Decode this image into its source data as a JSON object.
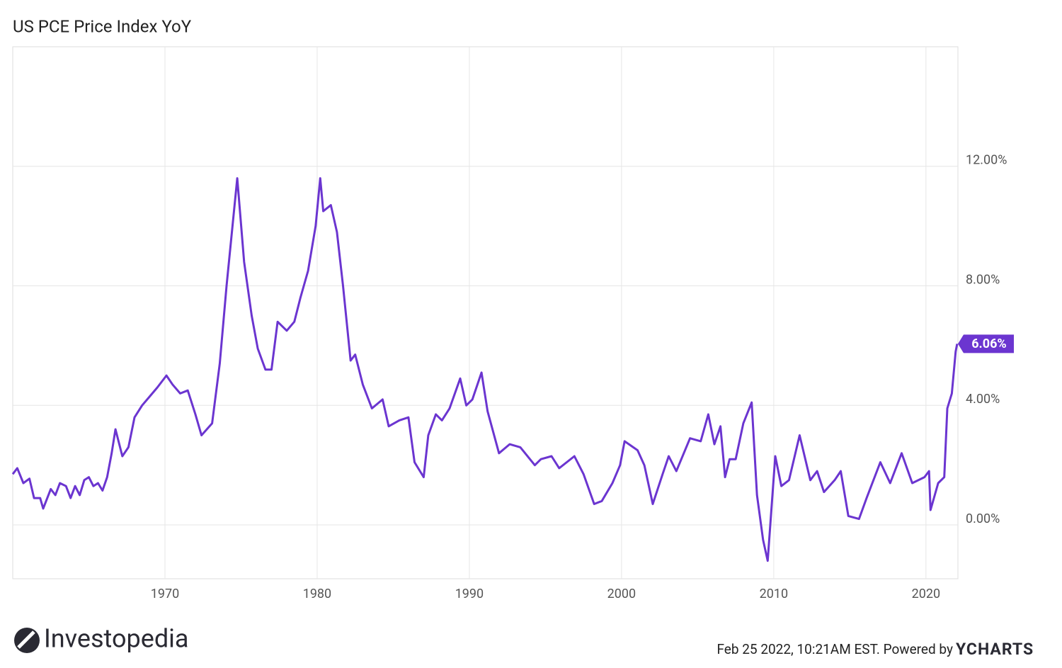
{
  "chart_data": {
    "type": "line",
    "title": "US PCE Price Index YoY",
    "color": "#6b35d0",
    "x": [
      1960.0,
      1960.3,
      1960.7,
      1961.1,
      1961.4,
      1961.8,
      1962.0,
      1962.5,
      1962.8,
      1963.1,
      1963.5,
      1963.8,
      1964.1,
      1964.4,
      1964.7,
      1965.0,
      1965.3,
      1965.6,
      1965.9,
      1966.2,
      1966.5,
      1966.75,
      1967.2,
      1967.6,
      1968.0,
      1968.5,
      1969.0,
      1969.5,
      1970.1,
      1970.5,
      1971.0,
      1971.5,
      1972.0,
      1972.4,
      1973.1,
      1973.6,
      1974.05,
      1974.75,
      1975.2,
      1975.7,
      1976.1,
      1976.6,
      1977.0,
      1977.4,
      1978.0,
      1978.5,
      1978.9,
      1979.4,
      1979.9,
      1980.2,
      1980.4,
      1980.9,
      1981.3,
      1981.7,
      1982.2,
      1982.5,
      1983.0,
      1983.6,
      1984.3,
      1984.7,
      1985.4,
      1986.0,
      1986.4,
      1987.0,
      1987.3,
      1987.8,
      1988.2,
      1988.7,
      1989.4,
      1989.8,
      1990.2,
      1990.8,
      1991.2,
      1991.95,
      1992.65,
      1993.35,
      1994.3,
      1994.7,
      1995.4,
      1995.9,
      1996.9,
      1997.5,
      1998.2,
      1998.7,
      1999.4,
      1999.9,
      2000.2,
      2001.05,
      2001.5,
      2002.05,
      2002.7,
      2003.1,
      2003.6,
      2004.5,
      2005.2,
      2005.7,
      2006.1,
      2006.5,
      2006.8,
      2007.1,
      2007.5,
      2008.0,
      2008.55,
      2008.9,
      2009.3,
      2009.6,
      2010.1,
      2010.5,
      2011.0,
      2011.7,
      2012.4,
      2012.85,
      2013.3,
      2014.0,
      2014.4,
      2014.9,
      2015.6,
      2016.1,
      2017.0,
      2017.65,
      2018.4,
      2019.1,
      2019.9,
      2020.2,
      2020.3,
      2020.8,
      2021.2,
      2021.4,
      2021.7,
      2021.95,
      2022.05
    ],
    "values": [
      1.7,
      1.9,
      1.4,
      1.55,
      0.9,
      0.9,
      0.55,
      1.2,
      1.0,
      1.4,
      1.3,
      0.9,
      1.3,
      1.0,
      1.5,
      1.6,
      1.3,
      1.4,
      1.15,
      1.6,
      2.4,
      3.2,
      2.3,
      2.6,
      3.6,
      4.0,
      4.3,
      4.6,
      5.0,
      4.7,
      4.4,
      4.5,
      3.7,
      3.0,
      3.4,
      5.4,
      8.0,
      11.6,
      8.8,
      7.0,
      5.9,
      5.2,
      5.2,
      6.8,
      6.5,
      6.8,
      7.6,
      8.5,
      10.0,
      11.6,
      10.5,
      10.7,
      9.8,
      8.0,
      5.5,
      5.7,
      4.7,
      3.9,
      4.2,
      3.3,
      3.5,
      3.6,
      2.1,
      1.6,
      3.0,
      3.7,
      3.5,
      3.9,
      4.9,
      4.0,
      4.2,
      5.1,
      3.8,
      2.4,
      2.7,
      2.6,
      2.0,
      2.2,
      2.3,
      1.9,
      2.3,
      1.7,
      0.7,
      0.8,
      1.4,
      2.0,
      2.8,
      2.5,
      2.0,
      0.7,
      1.7,
      2.3,
      1.8,
      2.9,
      2.8,
      3.7,
      2.7,
      3.3,
      1.6,
      2.2,
      2.2,
      3.4,
      4.1,
      1.0,
      -0.5,
      -1.2,
      2.3,
      1.3,
      1.5,
      3.0,
      1.5,
      1.8,
      1.1,
      1.5,
      1.8,
      0.3,
      0.2,
      0.9,
      2.1,
      1.4,
      2.4,
      1.4,
      1.6,
      1.8,
      0.5,
      1.4,
      1.6,
      3.9,
      4.4,
      5.8,
      6.06
    ],
    "annotations": [
      {
        "value": 6.06,
        "label": "6.06%"
      }
    ],
    "xlim": [
      1960,
      2022.1
    ],
    "xticks": [
      1970,
      1980,
      1990,
      2000,
      2010,
      2020
    ],
    "ylim": [
      -1.8,
      16
    ],
    "yticks": [
      {
        "value": 0,
        "label": "0.00%"
      },
      {
        "value": 4,
        "label": "4.00%"
      },
      {
        "value": 8,
        "label": "8.00%"
      },
      {
        "value": 12,
        "label": "12.00%"
      }
    ],
    "grid": true
  },
  "footer": {
    "brand": "Investopedia",
    "timestamp": "Feb 25 2022, 10:21AM EST. Powered by",
    "source": "YCHARTS"
  }
}
